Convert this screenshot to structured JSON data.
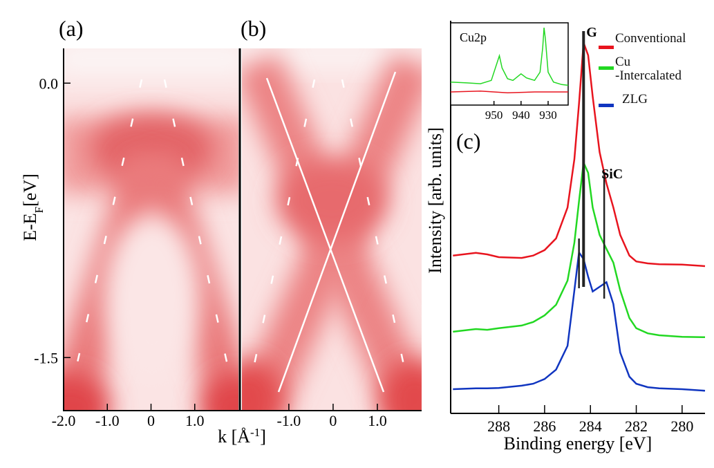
{
  "chart_data": [
    {
      "type": "image",
      "panel_label": "(a)",
      "y_label": {
        "main": "E-E",
        "sub": "F",
        "unit": "[eV]"
      },
      "x_label": {
        "main": "k [Å",
        "sup": "-1",
        "end": "]"
      },
      "xlim": [
        -2.0,
        2.0
      ],
      "xticks": [
        {
          "value": -2,
          "label": "-2.0"
        },
        {
          "value": -1,
          "label": "-1.0"
        },
        0,
        {
          "value": 1,
          "label": "1.0"
        }
      ],
      "ylim": [
        -1.79,
        0.19
      ],
      "yticks": [
        {
          "value": 0,
          "label": "0.0"
        },
        {
          "value": -1.5,
          "label": "-1.5"
        }
      ]
    },
    {
      "type": "image",
      "panel_label": "(b)",
      "xlim": [
        -2.06,
        2.0
      ],
      "xticks": [
        {
          "value": -1,
          "label": "-1.0"
        },
        0,
        {
          "value": 1,
          "label": "1.0"
        }
      ]
    },
    {
      "type": "line",
      "panel_label": "(c)",
      "x_label": "Binding energy [eV]",
      "y_label": "Intensity [arb. units]",
      "xlim": [
        290.1,
        279.0
      ],
      "xticks": [
        288,
        286,
        284,
        282,
        280
      ],
      "ylim": [
        0,
        100
      ],
      "x": [
        290,
        289,
        288.5,
        288,
        287,
        286.5,
        286,
        285.5,
        285,
        284.7,
        284.5,
        284.3,
        284.1,
        283.9,
        283.6,
        283.3,
        283.0,
        282.7,
        282.3,
        282,
        281.5,
        281,
        280,
        279
      ],
      "series": [
        {
          "name": "Conventional",
          "color": "#e8141e",
          "values": [
            40.4,
            41.1,
            40.7,
            40.0,
            39.8,
            40.4,
            41.8,
            44.8,
            52.7,
            65.1,
            79.3,
            94.9,
            91.7,
            81.1,
            66.9,
            58.9,
            52.7,
            45.7,
            40.4,
            38.9,
            38.4,
            38.2,
            38.1,
            37.7
          ]
        },
        {
          "name": "Cu\n-Intercalated",
          "color": "#22d822",
          "values": [
            20.9,
            21.6,
            21.4,
            21.8,
            22.5,
            23.4,
            25.1,
            27.8,
            34.0,
            43.7,
            54.3,
            64.2,
            61.6,
            52.7,
            45.7,
            42.1,
            38.6,
            31.5,
            24.4,
            21.8,
            20.5,
            20.0,
            19.6,
            19.5
          ]
        },
        {
          "name": "ZLG",
          "color": "#1035c0",
          "values": [
            6.2,
            6.4,
            6.4,
            6.5,
            7.1,
            7.6,
            8.8,
            11.2,
            17.3,
            31.5,
            41.2,
            39.5,
            35.0,
            31.2,
            32.4,
            33.6,
            28.0,
            15.6,
            9.4,
            7.6,
            6.7,
            6.4,
            6.2,
            5.8
          ]
        }
      ],
      "markers": [
        {
          "label": "G",
          "x": 284.3
        },
        {
          "x": 284.5
        },
        {
          "label": "SiC",
          "x": 283.4
        }
      ]
    },
    {
      "type": "line",
      "title": "Cu2p",
      "xlim": [
        966,
        922.6
      ],
      "xticks": [
        950,
        940,
        930
      ],
      "ylim": [
        0,
        100
      ],
      "series": [
        {
          "color": "#22d822",
          "x": [
            966,
            960,
            955,
            951,
            949,
            948,
            947,
            945,
            943,
            940,
            938,
            935,
            933,
            932,
            931.5,
            931,
            930,
            928,
            925,
            922.6
          ],
          "values": [
            28,
            27,
            26,
            30,
            50,
            60,
            45,
            32,
            30,
            38,
            33,
            30,
            40,
            70,
            94,
            80,
            40,
            28,
            25,
            24
          ]
        },
        {
          "color": "#e8141e",
          "x": [
            966,
            955,
            945,
            935,
            922.6
          ],
          "values": [
            16,
            17,
            15,
            16,
            16
          ]
        }
      ]
    }
  ]
}
